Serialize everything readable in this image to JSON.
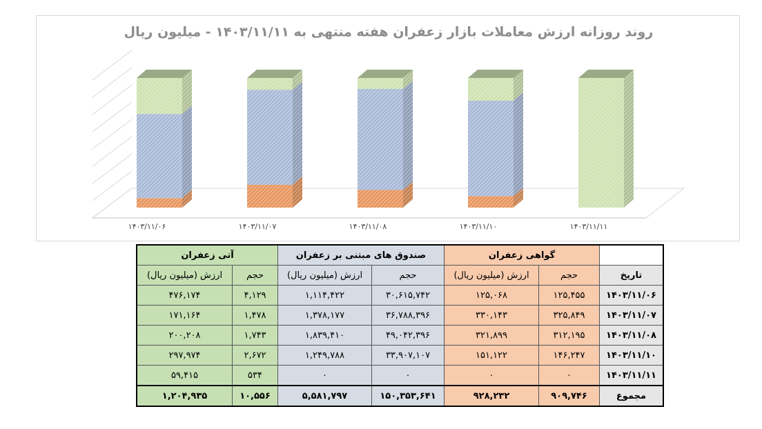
{
  "chart_data": {
    "type": "bar",
    "stacking": "percent",
    "title": "روند روزانه ارزش معاملات بازار زعفران هفته منتهی به ۱۴۰۳/۱۱/۱۱ - میلیون ریال",
    "categories": [
      "۱۴۰۳/۱۱/۰۶",
      "۱۴۰۳/۱۱/۰۷",
      "۱۴۰۳/۱۱/۰۸",
      "۱۴۰۳/۱۱/۱۰",
      "۱۴۰۳/۱۱/۱۱"
    ],
    "series": [
      {
        "color": "#e8965e",
        "values": [
          125068,
          330143,
          321899,
          151122,
          0
        ]
      },
      {
        "color": "#a9bad8",
        "values": [
          1114422,
          1378177,
          1839410,
          1249788,
          0
        ]
      },
      {
        "color": "#cfe2b2",
        "values": [
          476174,
          171164,
          200208,
          297974,
          59415
        ]
      }
    ],
    "grid": true
  },
  "table": {
    "groups": [
      "گواهی زعفران",
      "صندوق های مبتنی بر زعفران",
      "آتی زعفران"
    ],
    "header": [
      "تاریخ",
      "حجم",
      "ارزش (میلیون ریال)",
      "حجم",
      "ارزش (میلیون ریال)",
      "حجم",
      "ارزش (میلیون ریال)"
    ],
    "rows": [
      [
        "۱۴۰۳/۱۱/۰۶",
        "۱۲۵,۴۵۵",
        "۱۲۵,۰۶۸",
        "۳۰,۶۱۵,۷۴۲",
        "۱,۱۱۴,۴۲۲",
        "۴,۱۲۹",
        "۴۷۶,۱۷۴"
      ],
      [
        "۱۴۰۳/۱۱/۰۷",
        "۳۲۵,۸۴۹",
        "۳۳۰,۱۴۳",
        "۳۶,۷۸۸,۳۹۶",
        "۱,۳۷۸,۱۷۷",
        "۱,۴۷۸",
        "۱۷۱,۱۶۴"
      ],
      [
        "۱۴۰۳/۱۱/۰۸",
        "۳۱۲,۱۹۵",
        "۳۲۱,۸۹۹",
        "۴۹,۰۴۲,۳۹۶",
        "۱,۸۳۹,۴۱۰",
        "۱,۷۴۳",
        "۲۰۰,۲۰۸"
      ],
      [
        "۱۴۰۳/۱۱/۱۰",
        "۱۴۶,۲۴۷",
        "۱۵۱,۱۲۲",
        "۳۳,۹۰۷,۱۰۷",
        "۱,۲۴۹,۷۸۸",
        "۲,۶۷۲",
        "۲۹۷,۹۷۴"
      ],
      [
        "۱۴۰۳/۱۱/۱۱",
        "۰",
        "۰",
        "۰",
        "۰",
        "۵۳۴",
        "۵۹,۴۱۵"
      ]
    ],
    "total": [
      "مجموع",
      "۹۰۹,۷۴۶",
      "۹۲۸,۲۳۲",
      "۱۵۰,۳۵۳,۶۴۱",
      "۵,۵۸۱,۷۹۷",
      "۱۰,۵۵۶",
      "۱,۲۰۴,۹۳۵"
    ]
  }
}
